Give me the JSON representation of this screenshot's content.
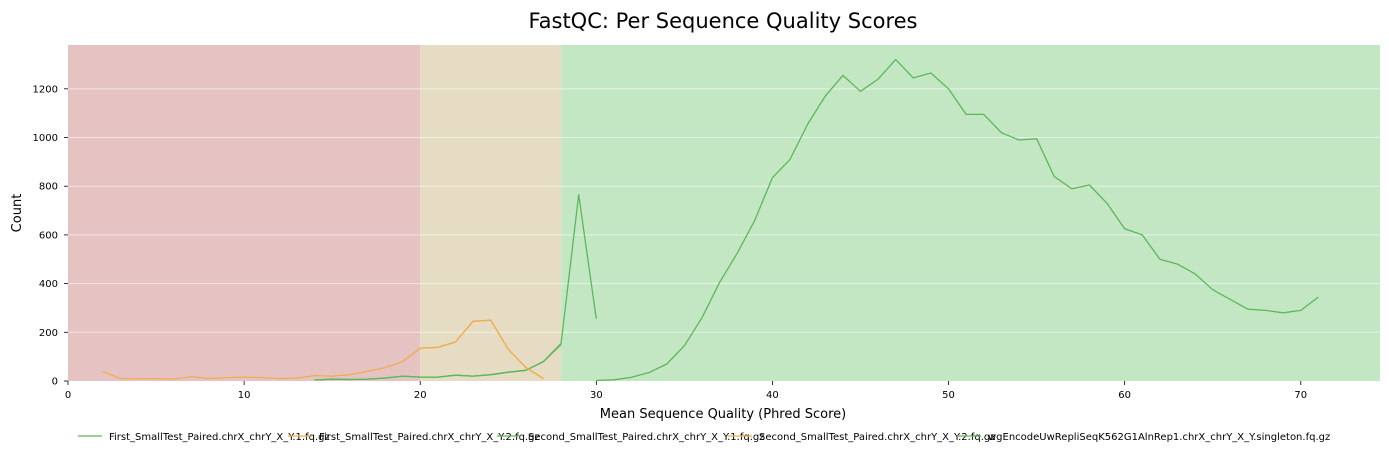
{
  "chart_data": {
    "type": "line",
    "title": "FastQC: Per Sequence Quality Scores",
    "xlabel": "Mean Sequence Quality (Phred Score)",
    "ylabel": "Count",
    "xlim": [
      0,
      74.5
    ],
    "ylim": [
      0,
      1380
    ],
    "xticks": [
      0,
      10,
      20,
      30,
      40,
      50,
      60,
      70
    ],
    "yticks": [
      0,
      200,
      400,
      600,
      800,
      1000,
      1200
    ],
    "grid": true,
    "legend_position": "bottom",
    "bands": [
      {
        "from": 0,
        "to": 20,
        "color": "#e6c3c3"
      },
      {
        "from": 20,
        "to": 28,
        "color": "#e6dcc3"
      },
      {
        "from": 28,
        "to": 74.5,
        "color": "#c3e6c3"
      }
    ],
    "series": [
      {
        "name": "First_SmallTest_Paired.chrX_chrY_X_Y.1.fq.gz",
        "color": "#5cb85c",
        "x": [
          14,
          15,
          16,
          17,
          18,
          19,
          20,
          21,
          22,
          23,
          24,
          25,
          26,
          27,
          28,
          29,
          30
        ],
        "y": [
          4,
          8,
          6,
          8,
          12,
          20,
          16,
          16,
          24,
          20,
          26,
          36,
          44,
          80,
          155,
          765,
          255
        ]
      },
      {
        "name": "First_SmallTest_Paired.chrX_chrY_X_Y.2.fq.gz",
        "color": "#f0ad4e",
        "x": [
          2,
          3,
          4,
          5,
          6,
          7,
          8,
          9,
          10,
          11,
          12,
          13,
          14,
          15,
          16,
          17,
          18,
          19,
          20,
          21,
          22,
          23,
          24,
          25,
          26,
          27
        ],
        "y": [
          38,
          10,
          10,
          10,
          8,
          18,
          10,
          14,
          16,
          14,
          10,
          12,
          22,
          20,
          26,
          40,
          55,
          80,
          135,
          138,
          160,
          245,
          250,
          130,
          55,
          10
        ]
      },
      {
        "name": "Second_SmallTest_Paired.chrX_chrY_X_Y.1.fq.gz",
        "color": "#5cb85c",
        "x": [
          14,
          15,
          16,
          17,
          18,
          19,
          20,
          21,
          22,
          23,
          24,
          25,
          26,
          27,
          28
        ],
        "y": [
          4,
          8,
          6,
          8,
          12,
          20,
          16,
          16,
          24,
          20,
          26,
          36,
          44,
          80,
          150
        ]
      },
      {
        "name": "Second_SmallTest_Paired.chrX_chrY_X_Y.2.fq.gz",
        "color": "#f0ad4e",
        "x": [
          19,
          20,
          21,
          22,
          23,
          24,
          25,
          26,
          27
        ],
        "y": [
          80,
          135,
          138,
          160,
          245,
          250,
          130,
          55,
          10
        ]
      },
      {
        "name": "wgEncodeUwRepliSeqK562G1AlnRep1.chrX_chrY_X_Y.singleton.fq.gz",
        "color": "#5cb85c",
        "x": [
          30,
          31,
          32,
          33,
          34,
          35,
          36,
          37,
          38,
          39,
          40,
          41,
          42,
          43,
          44,
          45,
          46,
          47,
          48,
          49,
          50,
          51,
          52,
          53,
          54,
          55,
          56,
          57,
          58,
          59,
          60,
          61,
          62,
          63,
          64,
          65,
          66,
          67,
          68,
          69,
          70,
          71
        ],
        "y": [
          2,
          5,
          15,
          35,
          70,
          145,
          260,
          405,
          525,
          660,
          835,
          910,
          1055,
          1170,
          1255,
          1190,
          1240,
          1320,
          1245,
          1265,
          1200,
          1095,
          1095,
          1020,
          990,
          995,
          840,
          790,
          805,
          730,
          625,
          600,
          500,
          480,
          440,
          375,
          335,
          295,
          290,
          280,
          290,
          345
        ]
      }
    ]
  }
}
